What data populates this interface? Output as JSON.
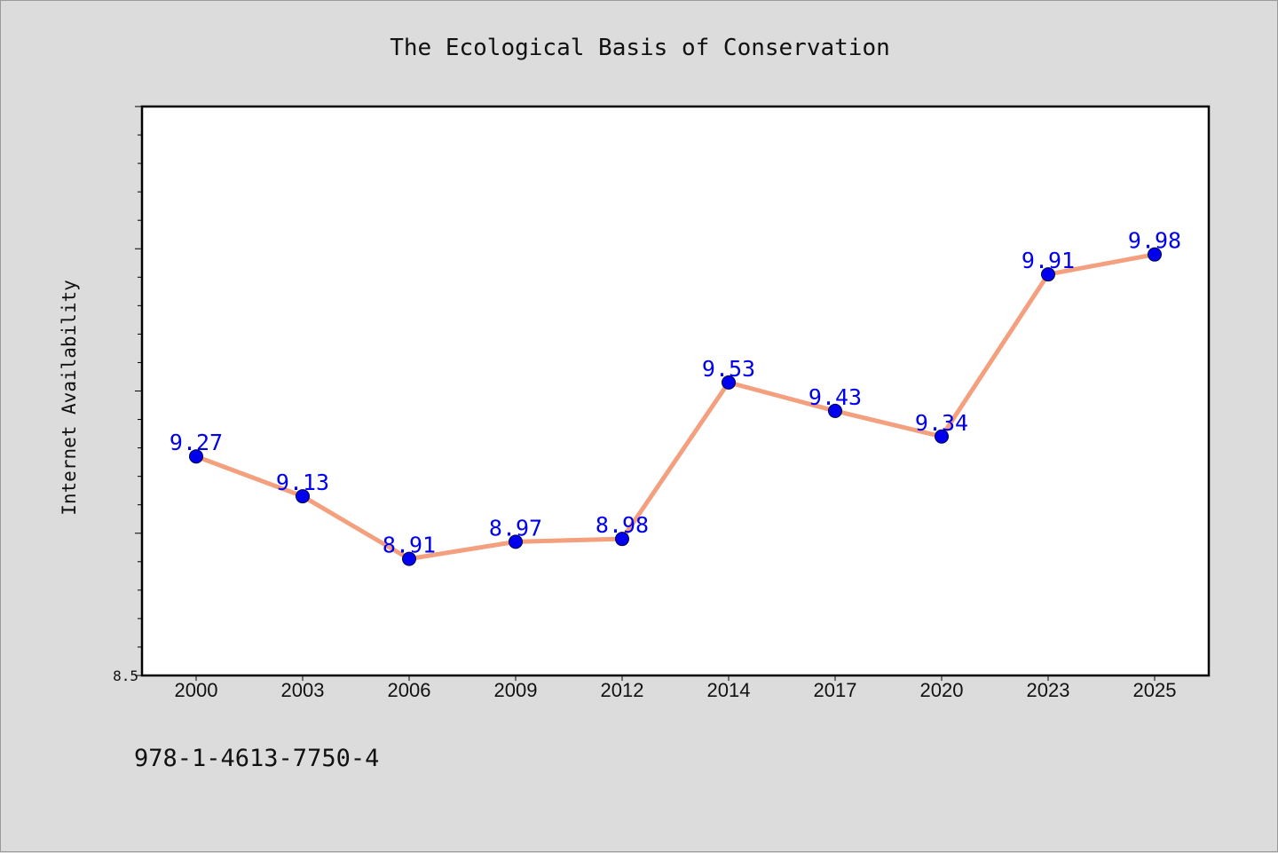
{
  "isbn": "978-1-4613-7750-4",
  "colors": {
    "background": "#dcdcdc",
    "plot_background": "#ffffff",
    "line": "#f4a07e",
    "marker": "#0000ee",
    "data_label": "#0000ee"
  },
  "chart_data": {
    "type": "line",
    "title": "The Ecological Basis of Conservation",
    "xlabel": "",
    "ylabel": "Internet Availability",
    "categories": [
      "2000",
      "2003",
      "2006",
      "2009",
      "2012",
      "2014",
      "2017",
      "2020",
      "2023",
      "2025"
    ],
    "series": [
      {
        "values": [
          9.27,
          9.13,
          8.91,
          8.97,
          8.98,
          9.53,
          9.43,
          9.34,
          9.91,
          9.98
        ]
      }
    ],
    "y_tick_labels": [
      "8.5"
    ],
    "ylim": [
      8.5,
      10.5
    ],
    "grid": false,
    "legend": "none",
    "marker": "circle"
  }
}
